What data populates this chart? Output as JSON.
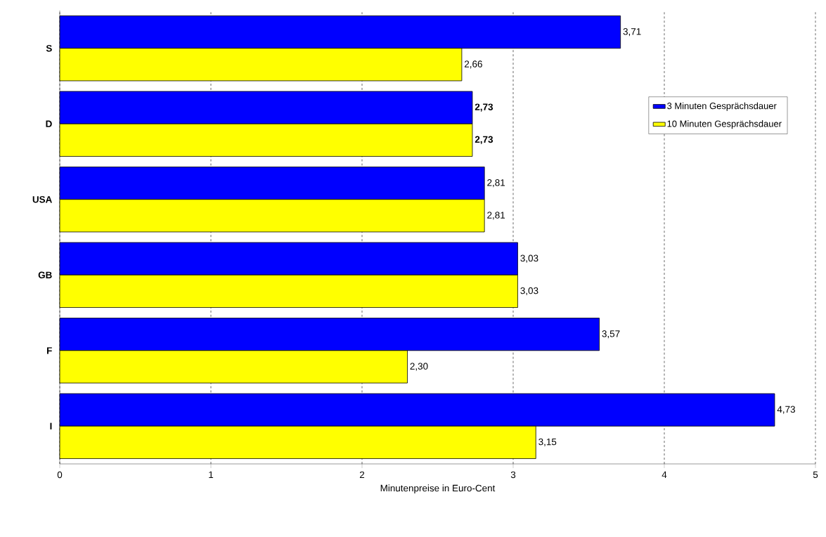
{
  "chart_data": {
    "type": "bar",
    "orientation": "horizontal",
    "categories": [
      "S",
      "D",
      "USA",
      "GB",
      "F",
      "I"
    ],
    "series": [
      {
        "name": "3 Minuten Gesprächsdauer",
        "color": "#0000ff",
        "values": [
          3.71,
          2.73,
          2.81,
          3.03,
          3.57,
          4.73
        ],
        "value_labels": [
          "3,71",
          "**2,73**",
          "2,81",
          "3,03",
          "3,57",
          "4,73"
        ]
      },
      {
        "name": "10 Minuten Gesprächsdauer",
        "color": "#ffff00",
        "values": [
          2.66,
          2.73,
          2.81,
          3.03,
          2.3,
          3.15
        ],
        "value_labels": [
          "2,66",
          "**2,73**",
          "2,81",
          "3,03",
          "2,30",
          "3,15"
        ]
      }
    ],
    "xlabel": "Minutenpreise in Euro-Cent",
    "xlim": [
      0,
      5
    ],
    "xticks": [
      0,
      1,
      2,
      3,
      4,
      5
    ],
    "grid": "x",
    "legend": "top right"
  }
}
